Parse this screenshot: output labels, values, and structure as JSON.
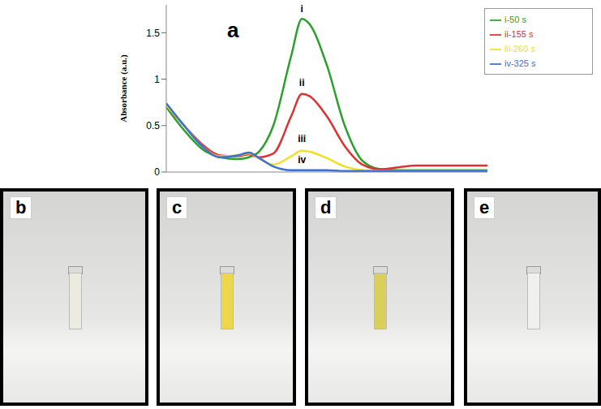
{
  "chart_data": {
    "type": "line",
    "panel_label": "a",
    "y_label": "Absorbance (a.u.)",
    "x": [
      250,
      275,
      300,
      325,
      350,
      366,
      380,
      400,
      425,
      440,
      450,
      475,
      500,
      525,
      550,
      575,
      600,
      650,
      700
    ],
    "series": [
      {
        "name": "i-50 s",
        "color": "#2ca02c",
        "values": [
          0.7,
          0.45,
          0.25,
          0.16,
          0.14,
          0.16,
          0.22,
          0.5,
          1.25,
          1.65,
          1.6,
          1.15,
          0.5,
          0.12,
          0.03,
          0.02,
          0.02,
          0.02,
          0.02
        ]
      },
      {
        "name": "ii-155 s",
        "color": "#e03030",
        "values": [
          0.72,
          0.5,
          0.3,
          0.18,
          0.17,
          0.19,
          0.16,
          0.2,
          0.6,
          0.84,
          0.82,
          0.6,
          0.28,
          0.08,
          0.03,
          0.05,
          0.07,
          0.07,
          0.07
        ]
      },
      {
        "name": "iii-260 s",
        "color": "#f2e024",
        "values": [
          0.72,
          0.5,
          0.28,
          0.17,
          0.18,
          0.2,
          0.15,
          0.08,
          0.17,
          0.23,
          0.22,
          0.15,
          0.06,
          0.02,
          0.01,
          0.01,
          0.01,
          0.01,
          0.01
        ]
      },
      {
        "name": "iv-325 s",
        "color": "#3a6fd8",
        "values": [
          0.74,
          0.5,
          0.28,
          0.16,
          0.18,
          0.21,
          0.15,
          0.06,
          0.02,
          0.02,
          0.02,
          0.02,
          0.01,
          0.01,
          0.01,
          0.01,
          0.01,
          0.01,
          0.01
        ]
      }
    ],
    "annotations": [
      {
        "text": "i",
        "x": 440,
        "y": 1.68
      },
      {
        "text": "ii",
        "x": 440,
        "y": 0.88
      },
      {
        "text": "iii",
        "x": 440,
        "y": 0.28
      },
      {
        "text": "iv",
        "x": 440,
        "y": 0.05
      }
    ],
    "xlim": [
      250,
      700
    ],
    "ylim": [
      0,
      1.8
    ],
    "yticks": [
      0,
      0.5,
      1,
      1.5
    ],
    "tick_labels": "y",
    "legend": "top-right",
    "grid": false
  },
  "photos": [
    {
      "label": "b",
      "color": "#ecebe0"
    },
    {
      "label": "c",
      "color": "#ecd84a"
    },
    {
      "label": "d",
      "color": "#d9cf5a"
    },
    {
      "label": "e",
      "color": "#f0f0ee"
    }
  ]
}
